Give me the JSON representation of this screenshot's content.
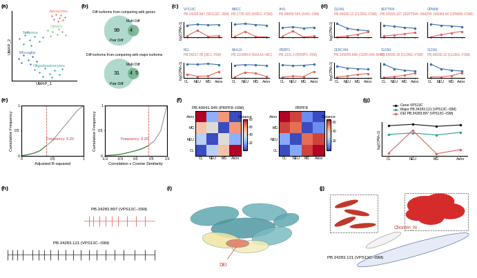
{
  "chart_data": [
    {
      "label": "(a)",
      "type": "scatter",
      "xlabel": "UMAP_1",
      "ylabel": "UMAP_2",
      "tick_labels": false,
      "xlim": [
        0,
        10
      ],
      "ylim": [
        0,
        10
      ],
      "series": [
        {
          "name": "Astrocytes",
          "color": "#e8735a",
          "x": [
            6.2,
            6.8,
            7.4,
            7.9,
            6.5,
            7.1,
            7.6,
            8.2
          ],
          "values": [
            9.3,
            9.5,
            9.0,
            8.7,
            8.8,
            8.5,
            9.4,
            9.1
          ]
        },
        {
          "name": "Others",
          "color": "#7fbf7f",
          "x": [
            5.5,
            6.3,
            7.0,
            7.8,
            6.0,
            7.3,
            8.3
          ],
          "values": [
            7.2,
            7.0,
            6.6,
            7.0,
            6.4,
            7.4,
            6.5
          ]
        },
        {
          "name": "Neurons",
          "color": "#4aa37a",
          "x": [
            1.2,
            2.0,
            2.8,
            3.5,
            4.3,
            1.8,
            3.0,
            4.8,
            2.4
          ],
          "values": [
            6.0,
            6.5,
            5.8,
            6.3,
            5.6,
            5.2,
            5.0,
            6.2,
            7.0
          ]
        },
        {
          "name": "Microglia",
          "color": "#3b6fb6",
          "x": [
            1.0,
            1.8,
            2.5,
            3.2,
            3.8,
            1.5,
            2.9
          ],
          "values": [
            3.2,
            3.7,
            3.0,
            3.5,
            2.8,
            2.6,
            2.4
          ]
        },
        {
          "name": "Oligodendrocytes",
          "color": "#3aa6a0",
          "x": [
            3.5,
            4.3,
            5.1,
            5.9,
            6.6,
            7.4,
            4.8,
            6.2,
            7.8
          ],
          "values": [
            1.6,
            1.2,
            1.8,
            1.0,
            1.5,
            0.9,
            0.6,
            0.5,
            1.7
          ]
        }
      ]
    },
    {
      "label": "(b)",
      "type": "venn",
      "venns": [
        {
          "title": "Diff isoforms from comparing with genes",
          "sets": [
            "Pair Diff",
            "Multi Diff"
          ],
          "only_first": 99,
          "both": 4,
          "only_second": null
        },
        {
          "title": "Diff isoforms from comparing with major isoforms",
          "sets": [
            "Pair Diff",
            "Multi Diff"
          ],
          "only_first": 31,
          "both": 4,
          "only_second": 5
        }
      ]
    },
    {
      "label": "(c)",
      "type": "line",
      "marker": "o",
      "tick_labels": "x",
      "ylabel": "log(CPM+1)",
      "categories": [
        "OL",
        "NEU",
        "MG",
        "Astro"
      ],
      "ylim": [
        0,
        5
      ],
      "charts": [
        {
          "series": [
            {
              "name": "VPS13C",
              "color": "#3a6ea5",
              "values": [
                4.0,
                4.3,
                4.1,
                4.2
              ]
            },
            {
              "name": "PB.34283.897 (VPS13C~ISM)",
              "color": "#e0625a",
              "values": [
                0.5,
                2.3,
                0.4,
                0.6
              ]
            }
          ]
        },
        {
          "series": [
            {
              "name": "NRDC",
              "color": "#3a6ea5",
              "values": [
                4.3,
                4.5,
                4.2,
                4.0
              ]
            },
            {
              "name": "PB.2735.333 (NRDC~FSM)",
              "color": "#e0625a",
              "values": [
                0.3,
                2.0,
                0.3,
                0.2
              ]
            }
          ]
        },
        {
          "series": [
            {
              "name": "AHI1",
              "color": "#3a6ea5",
              "values": [
                3.2,
                3.5,
                3.0,
                3.3
              ]
            },
            {
              "name": "PB.88659.544 (AHI1~ISM)",
              "color": "#e0625a",
              "values": [
                0.4,
                2.1,
                0.2,
                0.5
              ]
            }
          ]
        },
        {
          "series": [
            {
              "name": "NCL",
              "color": "#3a6ea5",
              "values": [
                4.5,
                4.4,
                4.6,
                4.3
              ]
            },
            {
              "name": "PB.58217.85 (NCL~ISM)",
              "color": "#e0625a",
              "values": [
                1.2,
                0.5,
                0.6,
                2.0
              ]
            }
          ]
        },
        {
          "series": [
            {
              "name": "NAA10",
              "color": "#3a6ea5",
              "values": [
                4.1,
                4.3,
                4.2,
                4.0
              ]
            },
            {
              "name": "PB.110398.8 (NAA10~NIC)",
              "color": "#e0625a",
              "values": [
                0.3,
                1.8,
                1.5,
                0.4
              ]
            }
          ]
        },
        {
          "series": [
            {
              "name": "RSRP1",
              "color": "#3a6ea5",
              "values": [
                4.2,
                4.0,
                4.1,
                4.4
              ]
            },
            {
              "name": "PB.1231.3 (RSRP1~ISM)",
              "color": "#e0625a",
              "values": [
                0.2,
                0.6,
                0.4,
                2.1
              ]
            }
          ]
        }
      ]
    },
    {
      "label": "(d)",
      "type": "line",
      "marker": "o",
      "tick_labels": "x",
      "ylabel": "log(CPM+1)",
      "categories": [
        "OL",
        "NEU",
        "MG",
        "Astro"
      ],
      "ylim": [
        0,
        5
      ],
      "charts": [
        {
          "series": [
            {
              "name": "CLDN1",
              "color": "#3a6ea5",
              "values": [
                4.5,
                3.0,
                2.5,
                2.2
              ]
            },
            {
              "name": "PB.69030.12 (CLDN1~FSM)",
              "color": "#e0625a",
              "values": [
                0.2,
                0.5,
                1.0,
                1.8
              ]
            }
          ]
        },
        {
          "series": [
            {
              "name": "SEPTIN4",
              "color": "#3a6ea5",
              "values": [
                4.0,
                3.6,
                3.3,
                3.0
              ]
            },
            {
              "name": "PB.43020.107 (SEPTIN4~ISM)",
              "color": "#e0625a",
              "values": [
                0.5,
                0.8,
                1.2,
                1.6
              ]
            }
          ]
        },
        {
          "series": [
            {
              "name": "GPM6B",
              "color": "#3a6ea5",
              "values": [
                4.4,
                4.0,
                3.8,
                3.5
              ]
            },
            {
              "name": "PB.106068.66 (GPM6B~FSM)",
              "color": "#e0625a",
              "values": [
                0.2,
                0.9,
                1.5,
                2.0
              ]
            }
          ]
        },
        {
          "series": [
            {
              "name": "CERCAM",
              "color": "#3a6ea5",
              "values": [
                3.8,
                3.2,
                3.0,
                2.8
              ]
            },
            {
              "name": "PB.105050.686 (CERCAM~NNC)",
              "color": "#e0625a",
              "values": [
                0.3,
                0.6,
                1.1,
                1.4
              ]
            }
          ]
        },
        {
          "series": [
            {
              "name": "CLDN1",
              "color": "#3a6ea5",
              "values": [
                4.5,
                3.0,
                2.5,
                2.2
              ]
            },
            {
              "name": "PB.69030.18 (CLDN1~FSM)",
              "color": "#e0625a",
              "values": [
                0.1,
                0.4,
                0.8,
                1.5
              ]
            }
          ]
        },
        {
          "series": [
            {
              "name": "CLDN1",
              "color": "#3a6ea5",
              "values": [
                4.5,
                3.0,
                2.5,
                2.2
              ]
            },
            {
              "name": "PB.69030.10 (CLDN1~FSM)",
              "color": "#e0625a",
              "values": [
                0.3,
                0.3,
                0.7,
                1.6
              ]
            }
          ]
        }
      ]
    },
    {
      "label": "(e)",
      "type": "line",
      "charts": [
        {
          "xlabel": "Adjusted R-squared",
          "ylabel": "Cumulative Frequency",
          "xlim": [
            0,
            1
          ],
          "ylim": [
            0,
            1
          ],
          "xticks": [
            0,
            0.5,
            1
          ],
          "yticks": [
            0,
            0.5,
            1
          ],
          "threshold": 0.4,
          "annotation": "Frequency: 0.20",
          "series": [
            {
              "color": "#2e7d32",
              "x": [
                0,
                0.1,
                0.2,
                0.3,
                0.4
              ],
              "values": [
                0,
                0.02,
                0.05,
                0.1,
                0.2
              ]
            },
            {
              "color": "#9e9e9e",
              "x": [
                0.4,
                0.5,
                0.6,
                0.7,
                0.8,
                0.9,
                1.0
              ],
              "values": [
                0.2,
                0.3,
                0.45,
                0.6,
                0.75,
                0.9,
                1.0
              ]
            }
          ]
        },
        {
          "xlabel": "Correlation x Cosine Similarity",
          "ylabel": "Cumulative Frequency",
          "xlim": [
            -1,
            1
          ],
          "ylim": [
            0,
            1
          ],
          "xticks": [
            -1.0,
            -0.5,
            0.0,
            0.5,
            1.0
          ],
          "yticks": [
            0,
            0.5,
            1
          ],
          "threshold": 0.4,
          "annotation": "Frequency: 0.20",
          "series": [
            {
              "color": "#2e7d32",
              "x": [
                -1.0,
                -0.8,
                -0.6,
                -0.4,
                -0.2,
                0.0,
                0.2,
                0.4
              ],
              "values": [
                0,
                0.01,
                0.02,
                0.04,
                0.07,
                0.1,
                0.14,
                0.2
              ]
            },
            {
              "color": "#9e9e9e",
              "x": [
                0.4,
                0.6,
                0.8,
                1.0
              ],
              "values": [
                0.2,
                0.3,
                0.5,
                1.0
              ]
            }
          ]
        }
      ]
    },
    {
      "label": "(f)",
      "type": "heatmap",
      "charts": [
        {
          "title": "PB.40041.945 (PRPF8~ISM)",
          "rows": [
            "Astro",
            "MG",
            "NEU",
            "OL"
          ],
          "columns": [
            "OL",
            "NEU",
            "MG",
            "Astro"
          ],
          "cells": [
            [
              80,
              20,
              60,
              0
            ],
            [
              50,
              40,
              0,
              60
            ],
            [
              30,
              0,
              40,
              20
            ],
            [
              0,
              30,
              50,
              80
            ]
          ],
          "colorbar": {
            "label": "Distance",
            "range": [
              0,
              80
            ],
            "ticks": [
              20,
              40,
              60,
              80
            ]
          }
        },
        {
          "title": "PRPF8",
          "rows": [
            "Astro",
            "MG",
            "NEU",
            "OL"
          ],
          "columns": [
            "OL",
            "NEU",
            "MG",
            "Astro"
          ],
          "cells": [
            [
              65,
              60,
              10,
              0
            ],
            [
              60,
              55,
              0,
              10
            ],
            [
              15,
              0,
              55,
              60
            ],
            [
              0,
              15,
              60,
              65
            ]
          ],
          "colorbar": {
            "label": "Distance",
            "range": [
              0,
              65
            ],
            "ticks": [
              20,
              40,
              60
            ]
          }
        }
      ]
    },
    {
      "label": "(g)",
      "type": "line",
      "marker": "o",
      "legend": "upper center",
      "tick_labels": "x",
      "ylabel": "log(CPM+1)",
      "categories": [
        "OL",
        "NEU",
        "MG",
        "Astro"
      ],
      "ylim": [
        0,
        5
      ],
      "series": [
        {
          "name": "Gene VPS13C",
          "color": "#111111",
          "values": [
            4.5,
            4.7,
            4.4,
            4.6
          ]
        },
        {
          "name": "Major PB.34283.121 (VPS13C~ISM)",
          "color": "#2a9d8f",
          "values": [
            3.2,
            3.4,
            3.1,
            3.5
          ]
        },
        {
          "name": "DEI PB.34283.897 (VPS13C~ISM)",
          "color": "#e0625a",
          "values": [
            0.4,
            3.8,
            0.3,
            0.9
          ]
        }
      ]
    },
    {
      "label": "(h)",
      "type": "diagram",
      "tracks": [
        {
          "name": "PB.34283.897 (VPS13C~ISM)",
          "color": "#e0625a",
          "start": 52,
          "end": 98,
          "exons": [
            55,
            58,
            62,
            66,
            70,
            74,
            80,
            86,
            92
          ]
        },
        {
          "name": "PB.34283.121 (VPS13C~ISM)",
          "color": "#222222",
          "start": 2,
          "end": 98,
          "exons": [
            2,
            5,
            8,
            12,
            18,
            22,
            26,
            30,
            35,
            40,
            45,
            50,
            55,
            60,
            66,
            72,
            78,
            85,
            92,
            98
          ]
        }
      ]
    },
    {
      "label": "(i)",
      "type": "diagram",
      "annotations": [
        "DEI"
      ]
    },
    {
      "label": "(j)",
      "type": "diagram",
      "annotations": [
        "Chorein_N",
        "PB.34283.121 (VPS13C~ISM)"
      ]
    }
  ]
}
